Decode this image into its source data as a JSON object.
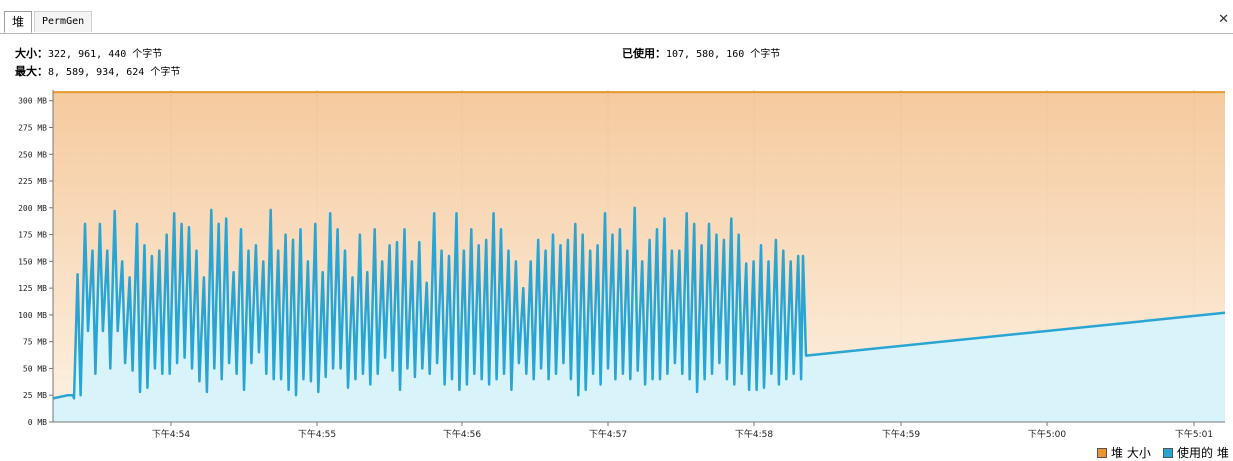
{
  "tabs": [
    {
      "label": "堆",
      "active": true
    },
    {
      "label": "PermGen",
      "active": false
    }
  ],
  "close_icon": "close-icon",
  "stats": {
    "size_label": "大小：",
    "size_value": "322, 961, 440 个字节",
    "max_label": "最大：",
    "max_value": "8, 589, 934, 624 个字节",
    "used_label": "已使用：",
    "used_value": "107, 580, 160 个字节"
  },
  "colors": {
    "heap_size": "#e8962e",
    "heap_size_fill_top": "#f4c493",
    "heap_size_fill_bottom": "#fdeedb",
    "used_heap": "#2aa4d3",
    "used_heap_fill": "#d9f3fb"
  },
  "chart_data": {
    "type": "area",
    "ylim": [
      0,
      310
    ],
    "y_ticks": [
      0,
      25,
      50,
      75,
      100,
      125,
      150,
      175,
      200,
      225,
      250,
      275,
      300
    ],
    "y_unit": "MB",
    "x_range": [
      "4:53.2",
      "5:01.2"
    ],
    "x_ticks": [
      "下午4:54",
      "下午4:55",
      "下午4:56",
      "下午4:57",
      "下午4:58",
      "下午4:59",
      "下午5:00",
      "下午5:01"
    ],
    "grid": true,
    "legend_position": "bottom-right",
    "series": [
      {
        "name": "堆 大小",
        "color": "#e8962e",
        "values": [
          308,
          308
        ]
      },
      {
        "name": "使用的 堆",
        "color": "#2aa4d3",
        "sawtooth_peaks": [
          138,
          185,
          160,
          185,
          160,
          197,
          150,
          135,
          185,
          165,
          155,
          160,
          175,
          195,
          185,
          182,
          160,
          135,
          198,
          185,
          190,
          140,
          180,
          160,
          165,
          150,
          198,
          160,
          175,
          170,
          180,
          150,
          185,
          140,
          195,
          180,
          160,
          135,
          175,
          140,
          180,
          150,
          165,
          168,
          180,
          150,
          168,
          130,
          195,
          160,
          155,
          195,
          160,
          180,
          165,
          170,
          195,
          180,
          160,
          150,
          125,
          150,
          170,
          160,
          175,
          165,
          170,
          185,
          175,
          160,
          165,
          195,
          175,
          180,
          160,
          200,
          150,
          170,
          180,
          190,
          160,
          160,
          195,
          185,
          165,
          185,
          175,
          170,
          190,
          175,
          148,
          150,
          165,
          150,
          170,
          160,
          150,
          155
        ],
        "sawtooth_troughs": [
          25,
          85,
          45,
          85,
          50,
          85,
          55,
          48,
          28,
          32,
          50,
          45,
          45,
          55,
          60,
          50,
          38,
          28,
          50,
          40,
          55,
          45,
          30,
          55,
          65,
          45,
          40,
          40,
          30,
          25,
          40,
          38,
          28,
          42,
          50,
          50,
          32,
          40,
          45,
          35,
          45,
          60,
          48,
          30,
          50,
          42,
          50,
          45,
          55,
          35,
          40,
          30,
          35,
          45,
          40,
          35,
          40,
          45,
          30,
          55,
          45,
          40,
          50,
          40,
          45,
          55,
          40,
          25,
          30,
          45,
          35,
          50,
          40,
          45,
          40,
          48,
          35,
          40,
          40,
          45,
          55,
          45,
          40,
          28,
          40,
          45,
          55,
          40,
          35,
          45,
          30,
          30,
          32,
          45,
          35,
          40,
          45,
          40
        ],
        "steady_start": 62,
        "steady_end": 102
      }
    ]
  },
  "legend": {
    "heap_size_label": "堆 大小",
    "used_heap_label": "使用的 堆"
  }
}
